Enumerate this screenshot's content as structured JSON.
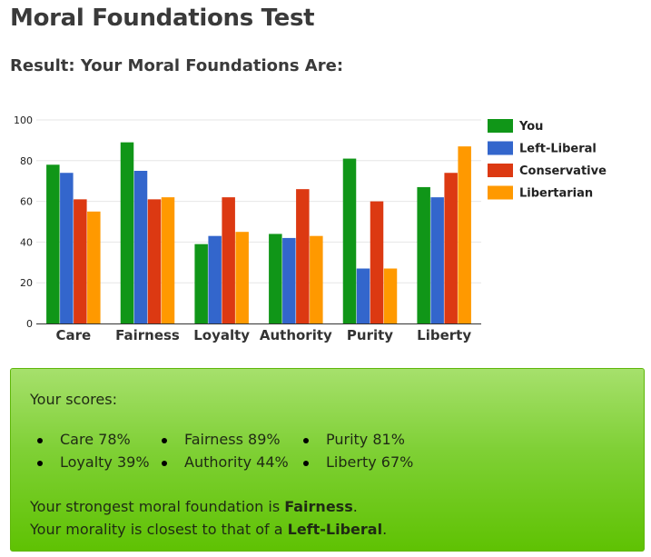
{
  "page": {
    "title": "Moral Foundations Test",
    "subtitle": "Result: Your Moral Foundations Are:"
  },
  "chart_data": {
    "type": "bar",
    "categories": [
      "Care",
      "Fairness",
      "Loyalty",
      "Authority",
      "Purity",
      "Liberty"
    ],
    "ylim": [
      0,
      100
    ],
    "yticks": [
      0,
      20,
      40,
      60,
      80,
      100
    ],
    "grid": true,
    "legend_position": "right",
    "xlabel": "",
    "ylabel": "",
    "series": [
      {
        "name": "You",
        "color": "#109618",
        "values": [
          78,
          89,
          39,
          44,
          81,
          67
        ]
      },
      {
        "name": "Left-Liberal",
        "color": "#3366cc",
        "values": [
          74,
          75,
          43,
          42,
          27,
          62
        ]
      },
      {
        "name": "Conservative",
        "color": "#dc3912",
        "values": [
          61,
          61,
          62,
          66,
          60,
          74
        ]
      },
      {
        "name": "Libertarian",
        "color": "#ff9900",
        "values": [
          55,
          62,
          45,
          43,
          27,
          87
        ]
      }
    ]
  },
  "result": {
    "scores_heading": "Your scores:",
    "scores": [
      "Care 78%",
      "Fairness 89%",
      "Purity 81%",
      "Loyalty 39%",
      "Authority 44%",
      "Liberty 67%"
    ],
    "strongest_prefix": "Your strongest moral foundation is ",
    "strongest_value": "Fairness",
    "strongest_suffix": ".",
    "closest_prefix": "Your morality is closest to that of a ",
    "closest_value": "Left-Liberal",
    "closest_suffix": "."
  }
}
